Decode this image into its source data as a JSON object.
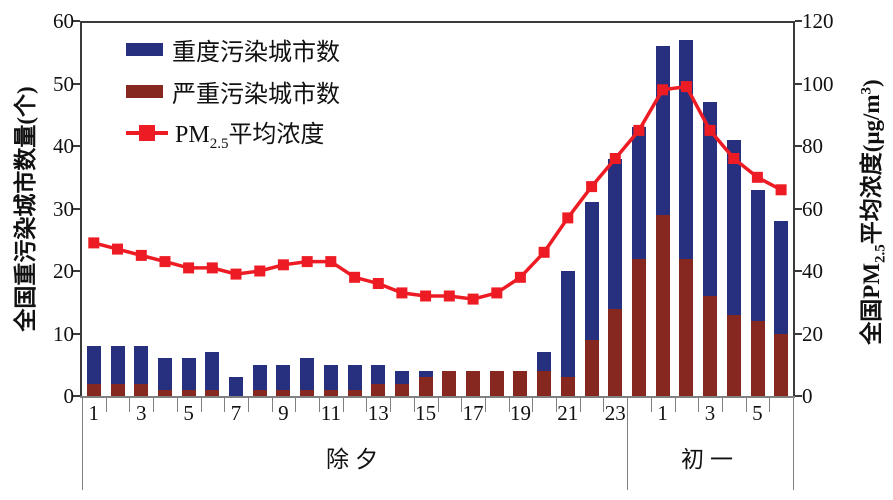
{
  "chart_data": {
    "type": "bar",
    "subtype": "stacked-bar-with-line",
    "title": "",
    "categories": [
      "1",
      "2",
      "3",
      "4",
      "5",
      "6",
      "7",
      "8",
      "9",
      "10",
      "11",
      "12",
      "13",
      "14",
      "15",
      "16",
      "17",
      "18",
      "19",
      "20",
      "21",
      "22",
      "23",
      "0",
      "1",
      "2",
      "3",
      "4",
      "5",
      "6"
    ],
    "groups": [
      {
        "label": "除夕",
        "count": 23
      },
      {
        "label": "初一",
        "count": 7
      }
    ],
    "x_tick_label_slots": [
      0,
      2,
      4,
      6,
      8,
      10,
      12,
      14,
      16,
      18,
      20,
      22,
      24,
      26,
      28
    ],
    "x_tick_labels": [
      "1",
      "3",
      "5",
      "7",
      "9",
      "11",
      "13",
      "15",
      "17",
      "19",
      "21",
      "23",
      "1",
      "3",
      "5"
    ],
    "series": [
      {
        "name": "重度污染城市数",
        "type": "bar",
        "stack": "top",
        "color": "#26307f",
        "values": [
          6,
          6,
          6,
          5,
          5,
          6,
          3,
          4,
          4,
          5,
          4,
          4,
          3,
          2,
          1,
          0,
          0,
          0,
          0,
          3,
          17,
          22,
          24,
          21,
          27,
          35,
          31,
          28,
          21,
          18
        ]
      },
      {
        "name": "严重污染城市数",
        "type": "bar",
        "stack": "bottom",
        "color": "#872820",
        "values": [
          2,
          2,
          2,
          1,
          1,
          1,
          0,
          1,
          1,
          1,
          1,
          1,
          2,
          2,
          3,
          4,
          4,
          4,
          4,
          4,
          3,
          9,
          14,
          22,
          29,
          22,
          16,
          13,
          12,
          10
        ]
      },
      {
        "name": "PM2.5平均浓度",
        "type": "line",
        "color": "#ed1c24",
        "values": [
          49,
          47,
          45,
          43,
          41,
          41,
          39,
          40,
          42,
          43,
          43,
          38,
          36,
          33,
          32,
          32,
          31,
          33,
          38,
          46,
          57,
          67,
          76,
          85,
          98,
          99,
          85,
          76,
          70,
          66
        ]
      }
    ],
    "left_axis": {
      "label": "全国重污染城市数量(个)",
      "min": 0,
      "max": 60,
      "ticks": [
        0,
        10,
        20,
        30,
        40,
        50,
        60
      ]
    },
    "right_axis": {
      "label_pre": "全国PM",
      "label_sub": "2.5",
      "label_mid": "平均浓度(μg/m",
      "label_sup": "3",
      "label_end": ")",
      "min": 0,
      "max": 120,
      "ticks": [
        0,
        20,
        40,
        60,
        80,
        100,
        120
      ]
    }
  },
  "legend": {
    "items": [
      {
        "label": "重度污染城市数",
        "marker": "bar",
        "color": "#26307f"
      },
      {
        "label": "严重污染城市数",
        "marker": "bar",
        "color": "#872820"
      },
      {
        "label_pre": "PM",
        "label_sub": "2.5",
        "label_post": "平均浓度",
        "marker": "line-square",
        "color": "#ed1c24"
      }
    ]
  }
}
